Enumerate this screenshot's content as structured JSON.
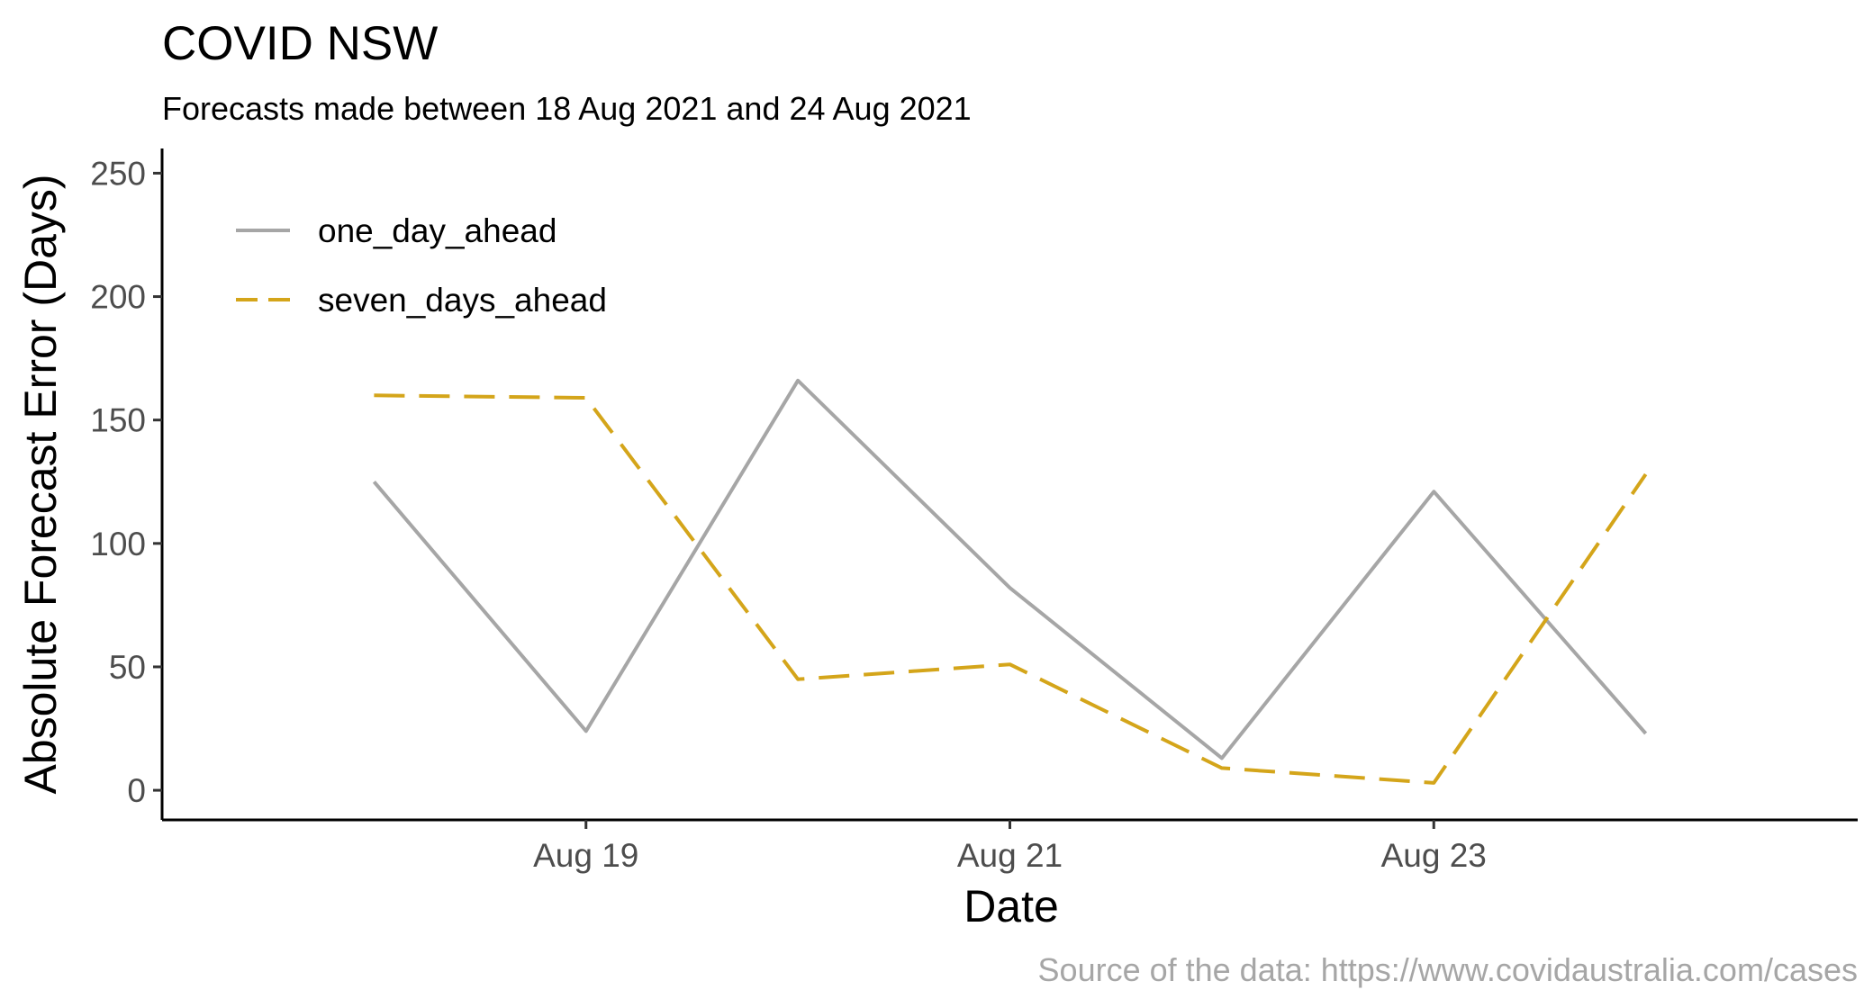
{
  "chart_data": {
    "type": "line",
    "title": "COVID NSW",
    "subtitle": "Forecasts made between 18 Aug 2021 and 24 Aug 2021",
    "xlabel": "Date",
    "ylabel": "Absolute Forecast Error (Days)",
    "caption": "Source of the data: https://www.covidaustralia.com/cases",
    "x": [
      "2021-08-18",
      "2021-08-19",
      "2021-08-20",
      "2021-08-21",
      "2021-08-22",
      "2021-08-23",
      "2021-08-24"
    ],
    "xlim": [
      "2021-08-17",
      "2021-08-25"
    ],
    "x_ticks": [
      {
        "date": "2021-08-19",
        "label": "Aug 19"
      },
      {
        "date": "2021-08-21",
        "label": "Aug 21"
      },
      {
        "date": "2021-08-23",
        "label": "Aug 23"
      }
    ],
    "ylim": [
      -12,
      260
    ],
    "y_ticks": [
      0,
      50,
      100,
      150,
      200,
      250
    ],
    "grid": false,
    "legend_position": "top-left",
    "series": [
      {
        "name": "one_day_ahead",
        "color": "#a6a6a6",
        "dash": "solid",
        "values": [
          125,
          24,
          166,
          82,
          13,
          121,
          23
        ]
      },
      {
        "name": "seven_days_ahead",
        "color": "#d4a51a",
        "dash": "dashed",
        "values": [
          160,
          159,
          45,
          51,
          9,
          3,
          128
        ]
      }
    ]
  }
}
